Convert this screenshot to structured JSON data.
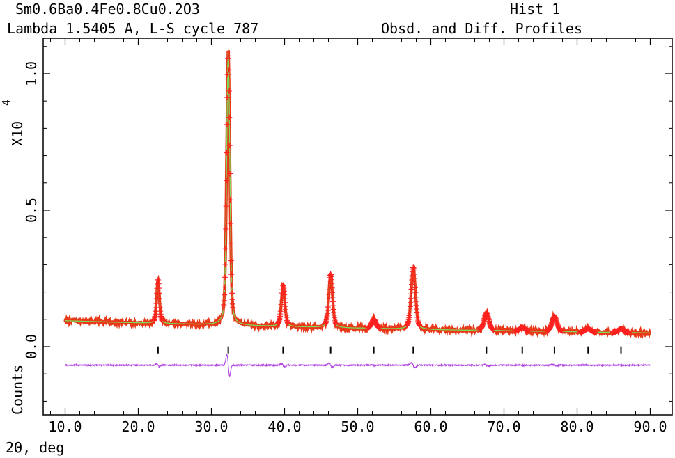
{
  "header": {
    "title_left": "Sm0.6Ba0.4Fe0.8Cu0.2O3",
    "title_right": "Hist   1",
    "subtitle_left": "Lambda 1.5405 A, L-S cycle  787",
    "subtitle_right": "Obsd. and Diff. Profiles"
  },
  "axes": {
    "xlabel": "2Θ, deg",
    "ylabel_top": "X10",
    "ylabel_exp": "4",
    "ylabel_bottom": "Counts"
  },
  "chart_data": {
    "type": "line",
    "xlim": [
      7,
      93
    ],
    "ylim": [
      -0.25,
      1.13
    ],
    "x_ticks": [
      10,
      20,
      30,
      40,
      50,
      60,
      70,
      80,
      90
    ],
    "x_tick_labels": [
      "10.0",
      "20.0",
      "30.0",
      "40.0",
      "50.0",
      "60.0",
      "70.0",
      "80.0",
      "90.0"
    ],
    "y_ticks": [
      0,
      0.5,
      1.0
    ],
    "y_tick_labels": [
      "0.0",
      "0.5",
      "1.0"
    ],
    "x_range": [
      10,
      90
    ],
    "background": {
      "start": 0.095,
      "end": 0.05,
      "mid": 0.062
    },
    "peaks": [
      {
        "x": 22.7,
        "height": 0.245
      },
      {
        "x": 32.3,
        "height": 1.08
      },
      {
        "x": 39.8,
        "height": 0.225
      },
      {
        "x": 46.3,
        "height": 0.265
      },
      {
        "x": 52.2,
        "height": 0.1
      },
      {
        "x": 57.6,
        "height": 0.29
      },
      {
        "x": 67.6,
        "height": 0.125
      },
      {
        "x": 72.5,
        "height": 0.07
      },
      {
        "x": 76.9,
        "height": 0.11
      },
      {
        "x": 81.5,
        "height": 0.065
      },
      {
        "x": 86.0,
        "height": 0.065
      }
    ],
    "reflection_ticks": [
      22.7,
      32.3,
      39.8,
      46.3,
      52.2,
      57.6,
      67.6,
      72.5,
      76.9,
      81.5,
      86.0
    ],
    "reflection_tick_y": -0.012,
    "difference_baseline": -0.068,
    "series": [
      {
        "name": "Obsd.",
        "style": "red-plus"
      },
      {
        "name": "Calc.",
        "style": "green-line"
      },
      {
        "name": "Diff.",
        "style": "purple-line"
      }
    ],
    "colors": {
      "observed": "#ff2020",
      "observed_fill": "#e83a1a",
      "calculated": "#7ed957",
      "difference": "#b040e0",
      "axes": "#000000"
    }
  }
}
